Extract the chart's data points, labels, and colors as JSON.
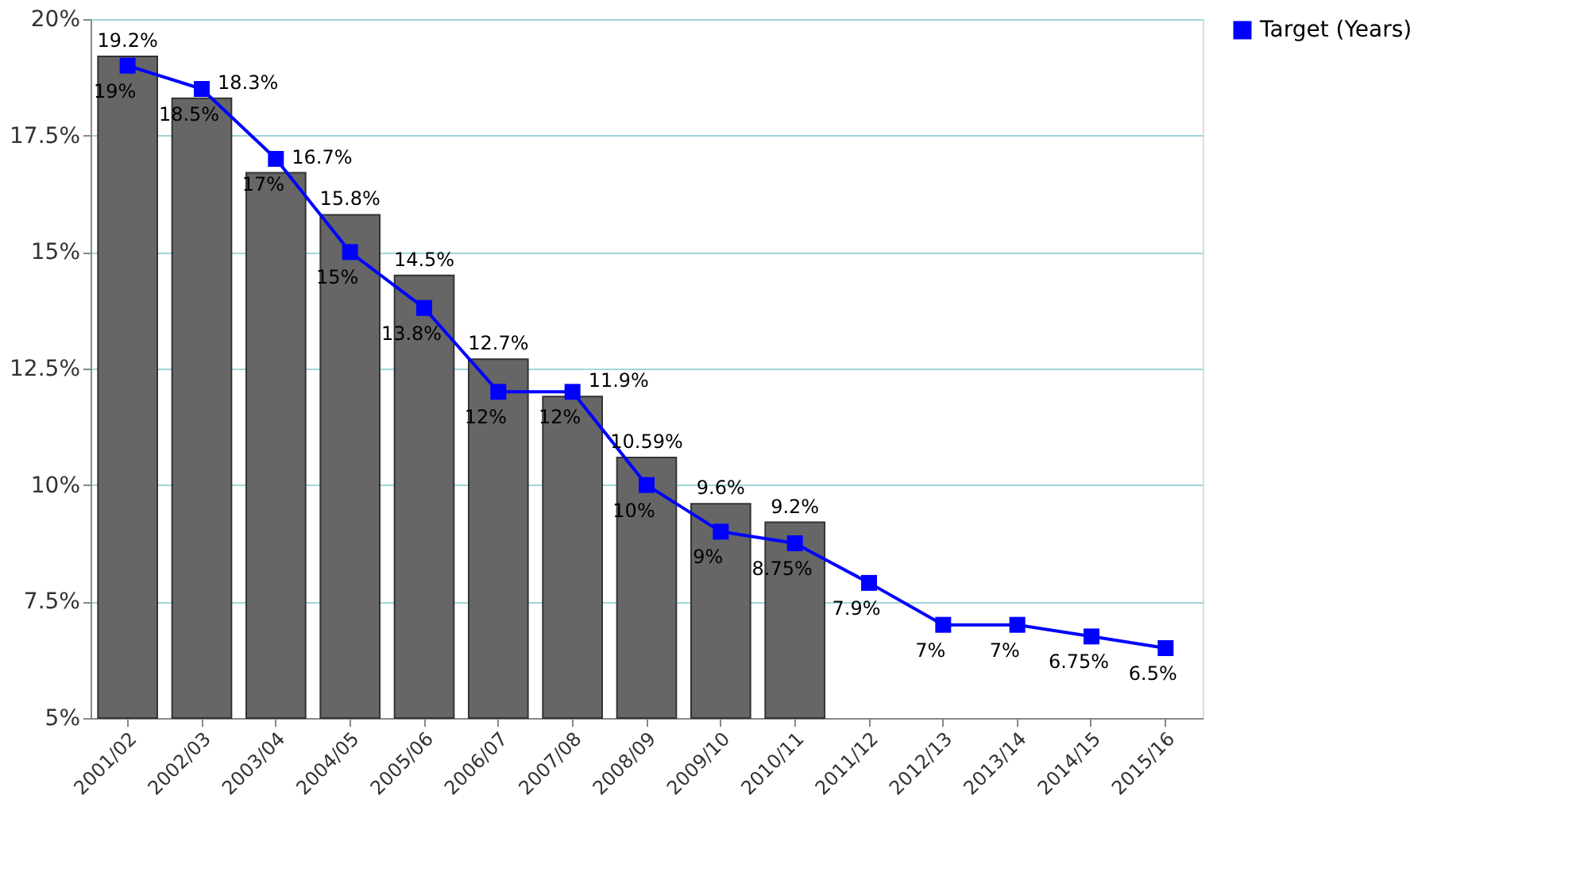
{
  "chart_data": {
    "type": "bar",
    "categories": [
      "2001/02",
      "2002/03",
      "2003/04",
      "2004/05",
      "2005/06",
      "2006/07",
      "2007/08",
      "2008/09",
      "2009/10",
      "2010/11",
      "2011/12",
      "2012/13",
      "2013/14",
      "2014/15",
      "2015/16"
    ],
    "series": [
      {
        "color": "#666666",
        "values": [
          19.2,
          18.3,
          16.7,
          15.8,
          14.5,
          12.7,
          11.9,
          10.59,
          9.6,
          9.2,
          null,
          null,
          null,
          null,
          null
        ],
        "value_labels": [
          "19.2%",
          "18.3%",
          "16.7%",
          "15.8%",
          "14.5%",
          "12.7%",
          "11.9%",
          "10.59%",
          "9.6%",
          "9.2%",
          null,
          null,
          null,
          null,
          null
        ]
      },
      {
        "type": "line",
        "name": "Target (Years)",
        "color": "#0000ff",
        "marker": "square",
        "values": [
          19,
          18.5,
          17,
          15,
          13.8,
          12,
          12,
          10,
          9,
          8.75,
          7.9,
          7,
          7,
          6.75,
          6.5
        ],
        "value_labels": [
          "19%",
          "18.5%",
          "17%",
          "15%",
          "13.8%",
          "12%",
          "12%",
          "10%",
          "9%",
          "8.75%",
          "7.9%",
          "7%",
          "7%",
          "6.75%",
          "6.5%"
        ]
      }
    ],
    "ylim": [
      5,
      20
    ],
    "yticks": [
      {
        "value": 5,
        "label": "5%"
      },
      {
        "value": 7.5,
        "label": "7.5%"
      },
      {
        "value": 10,
        "label": "10%"
      },
      {
        "value": 12.5,
        "label": "12.5%"
      },
      {
        "value": 15,
        "label": "15%"
      },
      {
        "value": 17.5,
        "label": "17.5%"
      },
      {
        "value": 20,
        "label": "20%"
      }
    ],
    "grid": "y",
    "legend": "right"
  }
}
